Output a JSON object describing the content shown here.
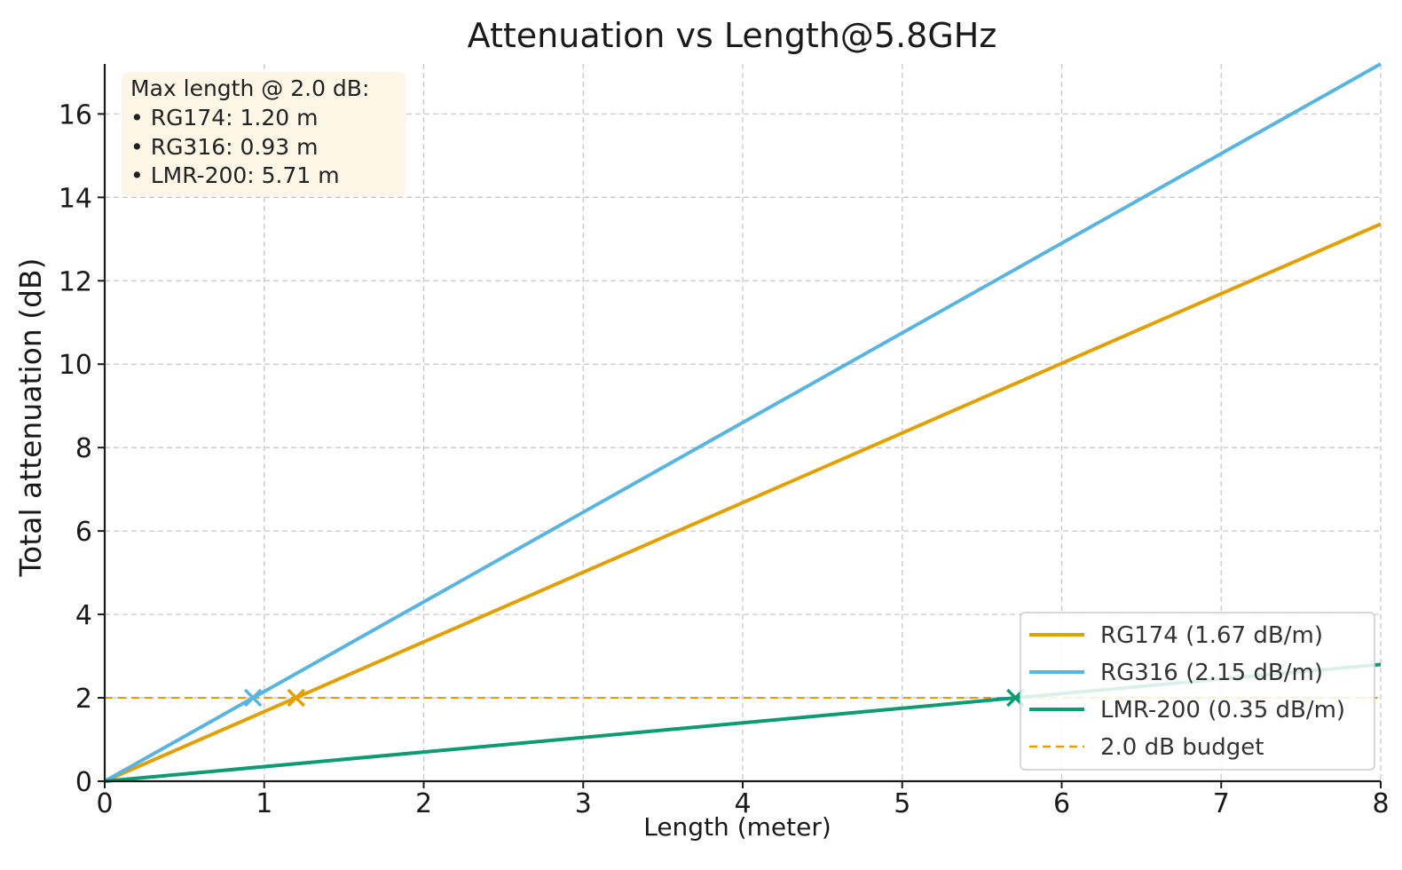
{
  "chart_data": {
    "type": "line",
    "title": "Attenuation vs Length@5.8GHz",
    "xlabel": "Length (meter)",
    "ylabel": "Total attenuation (dB)",
    "xlim": [
      0,
      8
    ],
    "ylim": [
      0,
      17.2
    ],
    "x_ticks": [
      0,
      1,
      2,
      3,
      4,
      5,
      6,
      7,
      8
    ],
    "y_ticks": [
      0,
      2,
      4,
      6,
      8,
      10,
      12,
      14,
      16
    ],
    "grid": true,
    "legend_position": "lower-right",
    "series": [
      {
        "name": "RG174 (1.67 dB/m)",
        "color": "#E0A000",
        "x": [
          0,
          8
        ],
        "y": [
          0,
          13.36
        ]
      },
      {
        "name": "RG316 (2.15 dB/m)",
        "color": "#5AB4E0",
        "x": [
          0,
          8
        ],
        "y": [
          0,
          17.2
        ]
      },
      {
        "name": "LMR-200 (0.35 dB/m)",
        "color": "#0E9A72",
        "x": [
          0,
          8
        ],
        "y": [
          0,
          2.8
        ]
      }
    ],
    "budget": {
      "name": "2.0 dB budget",
      "value": 2.0,
      "color": "#E0A000",
      "style": "dashed"
    },
    "max_length_markers": [
      {
        "series": "RG174",
        "x": 1.2,
        "y": 2.0,
        "color": "#E0A000"
      },
      {
        "series": "RG316",
        "x": 0.93,
        "y": 2.0,
        "color": "#5AB4E0"
      },
      {
        "series": "LMR-200",
        "x": 5.71,
        "y": 2.0,
        "color": "#0E9A72"
      }
    ],
    "annotation": {
      "heading": "Max length @ 2.0 dB:",
      "lines": [
        "• RG174: 1.20 m",
        "• RG316: 0.93 m",
        "• LMR-200: 5.71 m"
      ],
      "position": "top-left",
      "background": "#FDF5E6"
    }
  }
}
